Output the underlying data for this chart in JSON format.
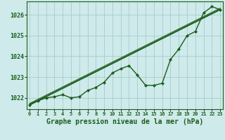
{
  "hours": [
    0,
    1,
    2,
    3,
    4,
    5,
    6,
    7,
    8,
    9,
    10,
    11,
    12,
    13,
    14,
    15,
    16,
    17,
    18,
    19,
    20,
    21,
    22,
    23
  ],
  "pressure": [
    1021.65,
    1021.85,
    1022.0,
    1022.05,
    1022.15,
    1022.0,
    1022.05,
    1022.35,
    1022.5,
    1022.75,
    1023.2,
    1023.4,
    1023.55,
    1023.1,
    1022.6,
    1022.6,
    1022.7,
    1023.85,
    1024.35,
    1025.0,
    1025.2,
    1026.1,
    1026.4,
    1026.25
  ],
  "trend_y0": 1021.65,
  "trend_y1": 1026.25,
  "bg_color": "#ceeaea",
  "line_color": "#1a5c1a",
  "grid_color": "#a8cccc",
  "axis_color": "#1a5c1a",
  "tick_color": "#1a5c1a",
  "xlabel": "Graphe pression niveau de la mer (hPa)",
  "ylim": [
    1021.45,
    1026.65
  ],
  "yticks": [
    1022,
    1023,
    1024,
    1025,
    1026
  ],
  "xlim": [
    -0.3,
    23.3
  ],
  "xticks": [
    0,
    1,
    2,
    3,
    4,
    5,
    6,
    7,
    8,
    9,
    10,
    11,
    12,
    13,
    14,
    15,
    16,
    17,
    18,
    19,
    20,
    21,
    22,
    23
  ]
}
